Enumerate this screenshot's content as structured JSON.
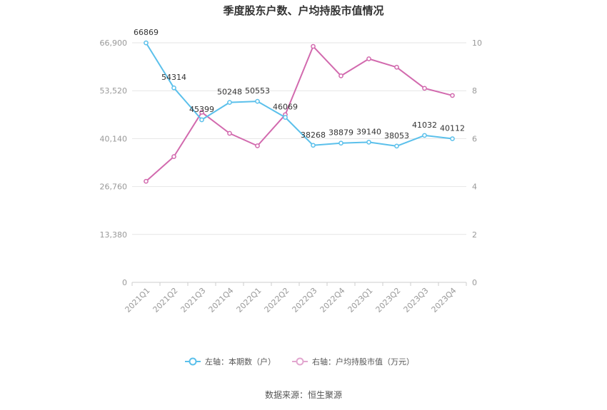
{
  "chart_data": {
    "type": "line",
    "title": "季度股东户数、户均持股市值情况",
    "categories": [
      "2021Q1",
      "2021Q2",
      "2021Q3",
      "2021Q4",
      "2022Q1",
      "2022Q2",
      "2022Q3",
      "2022Q4",
      "2023Q1",
      "2023Q2",
      "2023Q3",
      "2023Q4"
    ],
    "left_axis": {
      "min": 0,
      "max": 66900,
      "ticks": [
        "0",
        "13,380",
        "26,760",
        "40,140",
        "53,520",
        "66,900"
      ],
      "tick_values": [
        0,
        13380,
        26760,
        40140,
        53520,
        66900
      ]
    },
    "right_axis": {
      "min": 0,
      "max": 10,
      "ticks": [
        "0",
        "2",
        "4",
        "6",
        "8",
        "10"
      ],
      "tick_values": [
        0,
        2,
        4,
        6,
        8,
        10
      ]
    },
    "series": [
      {
        "name": "左轴：本期数（户）",
        "axis": "left",
        "color": "#5bc0eb",
        "values": [
          66869,
          54314,
          45399,
          50248,
          50553,
          46069,
          38268,
          38879,
          39140,
          38053,
          41032,
          40112
        ],
        "labels": [
          "66869",
          "54314",
          "45399",
          "50248",
          "50553",
          "46069",
          "38268",
          "38879",
          "39140",
          "38053",
          "41032",
          "40112"
        ]
      },
      {
        "name": "右轴：户均持股市值（万元）",
        "axis": "right",
        "color": "#d26aae",
        "values": [
          4.22,
          5.25,
          7.1,
          6.22,
          5.7,
          7.0,
          9.85,
          8.62,
          9.33,
          8.98,
          8.1,
          7.8
        ]
      }
    ],
    "grid": true,
    "legend_position": "bottom"
  },
  "footer": {
    "source": "数据来源：恒生聚源"
  }
}
